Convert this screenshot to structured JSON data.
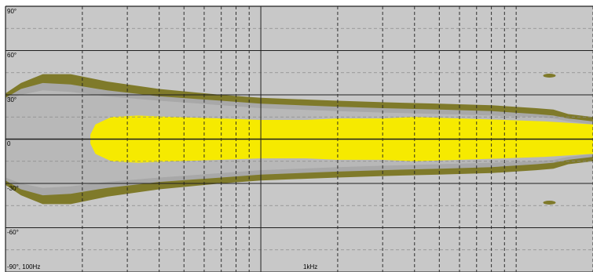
{
  "chart_data": {
    "type": "heatmap",
    "title": "",
    "xlabel": "",
    "ylabel": "",
    "x_scale": "log",
    "xlim_hz": [
      100,
      20000
    ],
    "ylim_deg": [
      -90,
      90
    ],
    "grid": true,
    "y_tick_labels": [
      "90°",
      "60°",
      "30°",
      "0",
      "-30°",
      "-60°",
      "-90°, 100Hz"
    ],
    "y_tick_values": [
      90,
      60,
      30,
      0,
      -30,
      -60,
      -90
    ],
    "x_tick_labels": [
      "1kHz"
    ],
    "x_tick_values": [
      1000
    ],
    "x_minor_gridlines_hz": [
      200,
      300,
      400,
      500,
      600,
      700,
      800,
      900,
      2000,
      3000,
      4000,
      5000,
      6000,
      7000,
      8000,
      9000,
      10000,
      20000
    ],
    "contour_colors": {
      "background": "#c8c8c8",
      "outer_band": "#7f7a2a",
      "middle_band": "#a8a8a8",
      "inner_band": "#b8b8b8",
      "core": "#f6ea00"
    },
    "contours": {
      "outer": {
        "name": "",
        "freq_hz": [
          100,
          115,
          140,
          180,
          250,
          400,
          700,
          1000,
          2000,
          3000,
          5000,
          8000,
          12000,
          14000,
          16000,
          20000
        ],
        "upper_deg": [
          31,
          38,
          44,
          44,
          39,
          34,
          30,
          28,
          26,
          25,
          24,
          23,
          21,
          20,
          17,
          15
        ],
        "lower_deg": [
          -31,
          -38,
          -44,
          -44,
          -39,
          -34,
          -30,
          -28,
          -26,
          -25,
          -24,
          -23,
          -21,
          -20,
          -17,
          -15
        ]
      },
      "middle": {
        "name": "",
        "freq_hz": [
          100,
          115,
          140,
          180,
          250,
          400,
          700,
          1000,
          2000,
          3000,
          5000,
          8000,
          12000,
          14000,
          16000,
          20000
        ],
        "upper_deg": [
          28,
          34,
          38,
          37,
          33,
          29,
          26,
          24,
          22,
          21,
          20,
          19,
          17,
          16,
          14,
          12
        ],
        "lower_deg": [
          -28,
          -34,
          -38,
          -37,
          -33,
          -29,
          -26,
          -24,
          -22,
          -21,
          -20,
          -19,
          -17,
          -16,
          -14,
          -12
        ]
      },
      "inner": {
        "name": "",
        "freq_hz": [
          100,
          115,
          140,
          180,
          250,
          400,
          700,
          1000,
          2000,
          3000,
          5000,
          8000,
          12000,
          14000,
          16000,
          20000
        ],
        "upper_deg": [
          26,
          30,
          33,
          32,
          29,
          26,
          23,
          21,
          19,
          18,
          17,
          16,
          15,
          14,
          12,
          10
        ],
        "lower_deg": [
          -26,
          -30,
          -33,
          -32,
          -29,
          -26,
          -23,
          -21,
          -19,
          -18,
          -17,
          -16,
          -15,
          -14,
          -12,
          -10
        ]
      },
      "core": {
        "name": "",
        "freq_hz": [
          215,
          225,
          260,
          330,
          450,
          700,
          1000,
          1500,
          2000,
          3000,
          4000,
          6000,
          9000,
          13000,
          20000
        ],
        "upper_deg": [
          3,
          10,
          15,
          16,
          15,
          14,
          13,
          13,
          14,
          14,
          15,
          14,
          13,
          12,
          10
        ],
        "lower_deg": [
          -3,
          -10,
          -15,
          -16,
          -15,
          -14,
          -13,
          -13,
          -14,
          -14,
          -15,
          -14,
          -13,
          -12,
          -10
        ]
      }
    },
    "lobes": [
      {
        "freq_hz": 13500,
        "angle_deg": 43
      },
      {
        "freq_hz": 13500,
        "angle_deg": -43
      }
    ]
  }
}
